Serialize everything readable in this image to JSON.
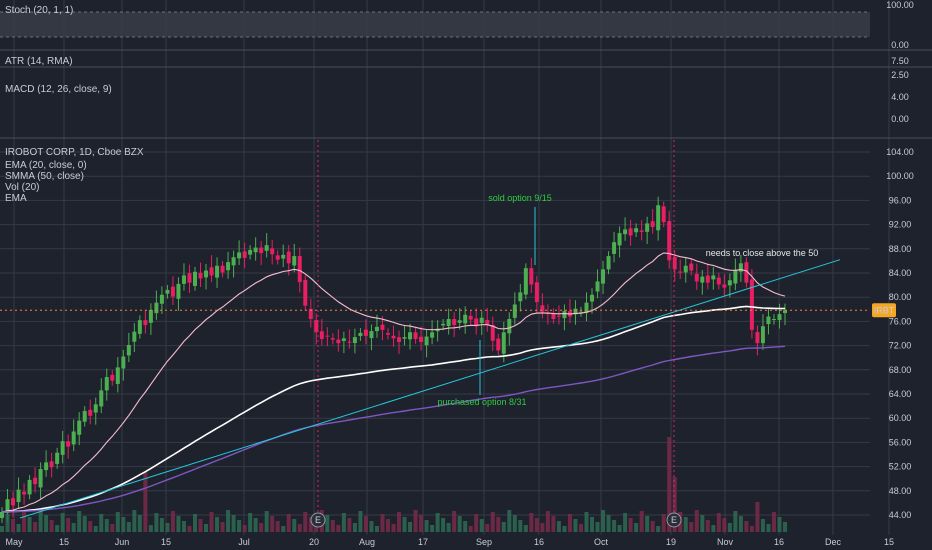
{
  "chart_data": {
    "type": "candlestick",
    "symbol_title": "IROBOT CORP, 1D, Cboe BZX",
    "ticker_tag": "IRBT",
    "last_price": 77.84,
    "indicator_legend": [
      "EMA (20, close, 0)",
      "SMMA (50, close)",
      "Vol (20)",
      "EMA"
    ],
    "x_tick_labels": [
      "May",
      "15",
      "Jun",
      "15",
      "Jul",
      "20",
      "Aug",
      "17",
      "Sep",
      "16",
      "Oct",
      "19",
      "Nov",
      "16",
      "Dec",
      "15"
    ],
    "y_tick_labels": [
      "104.00",
      "100.00",
      "96.00",
      "92.00",
      "88.00",
      "84.00",
      "80.00",
      "76.00",
      "72.00",
      "68.00",
      "64.00",
      "60.00",
      "56.00",
      "52.00",
      "48.00",
      "44.00"
    ],
    "ylim": [
      43,
      105
    ],
    "close_prices": [
      44.5,
      46.6,
      45.6,
      48.2,
      47.4,
      49.8,
      49.1,
      51.6,
      52.7,
      51.9,
      54.3,
      56.2,
      55.3,
      57.8,
      59.6,
      61.2,
      60.4,
      62.3,
      64.6,
      66.8,
      66.2,
      68.4,
      70.2,
      72.1,
      74.3,
      76.2,
      75.4,
      77.9,
      79.1,
      80.4,
      81.2,
      80.1,
      82.2,
      83.6,
      82.4,
      84.2,
      83.1,
      84.4,
      83.6,
      85.2,
      84.1,
      85.8,
      86.6,
      87.4,
      86.5,
      87.8,
      88.2,
      87.3,
      88.6,
      87.1,
      86.2,
      87.0,
      85.6,
      86.8,
      82.5,
      78.6,
      76.4,
      74.2,
      73.1,
      73.6,
      73.0,
      72.4,
      73.2,
      72.6,
      73.4,
      74.1,
      73.6,
      74.4,
      75.1,
      74.6,
      73.8,
      73.2,
      72.6,
      73.4,
      74.2,
      73.1,
      72.6,
      73.5,
      74.2,
      74.8,
      75.6,
      76.4,
      75.4,
      76.2,
      77.1,
      76.3,
      75.2,
      76.6,
      75.4,
      72.8,
      71.2,
      74.2,
      76.4,
      78.8,
      80.8,
      84.8,
      82.1,
      79.2,
      77.6,
      77.2,
      76.4,
      76.9,
      77.7,
      76.8,
      78.1,
      77.6,
      79.1,
      80.4,
      82.6,
      84.6,
      86.8,
      89.1,
      90.6,
      91.2,
      90.2,
      91.4,
      90.8,
      92.2,
      91.6,
      95.2,
      92.4,
      86.1,
      84.6,
      84.1,
      85.2,
      84.4,
      82.6,
      83.4,
      82.4,
      83.6,
      82.1,
      81.6,
      82.8,
      84.4,
      85.6,
      82.4,
      74.6,
      72.4,
      75.2,
      76.8,
      76.4,
      77.2,
      77.84
    ],
    "events_marker": "E",
    "volume_bars_count": 143,
    "annotations": [
      {
        "text": "sold option 9/15",
        "color": "#2ecc40"
      },
      {
        "text": "purchased option 8/31",
        "color": "#2ecc40"
      },
      {
        "text": "needs to close above the 50",
        "color": "#e6e6e6"
      }
    ],
    "indicator_panes": [
      {
        "label": "Stoch (20, 1, 1)",
        "ticks": [
          "100.00",
          "0.00"
        ],
        "line_color": "#f0843c"
      },
      {
        "label": "ATR (14, RMA)",
        "ticks": [
          "7.50",
          "2.50"
        ],
        "line_color": "#e6e6e6"
      },
      {
        "label": "MACD (12, 26, close, 9)",
        "ticks": [
          "4.00",
          "0.00"
        ],
        "line_color": "#2962ff"
      }
    ],
    "colors": {
      "background": "#1e222d",
      "grid": "#363a45",
      "up": "#26a69a",
      "candle_up": "#4caf50",
      "candle_down": "#e91e63",
      "ema20": "#f8bbd0",
      "smma50": "#ffffff",
      "ema_long": "#7e57c2",
      "trendline": "#26c6da",
      "price_line": "#f0843c"
    }
  }
}
